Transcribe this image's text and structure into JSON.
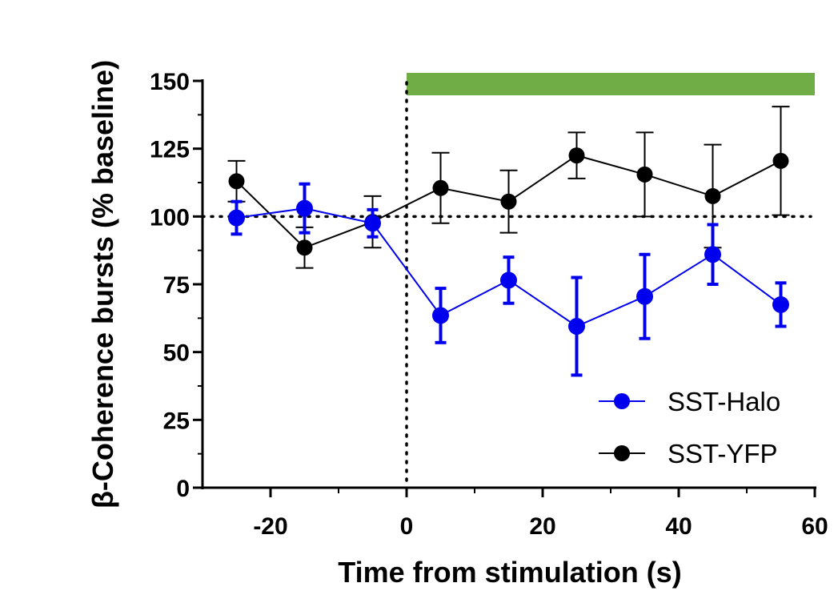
{
  "chart_data": {
    "type": "line",
    "title": "",
    "xlabel": "Time from stimulation (s)",
    "ylabel": "β-Coherence bursts (% baseline)",
    "xlim": [
      -30,
      60
    ],
    "ylim": [
      0,
      150
    ],
    "xticks": [
      -20,
      0,
      20,
      40,
      60
    ],
    "xtick_labels": [
      "-20",
      "0",
      "20",
      "40",
      "60"
    ],
    "yticks": [
      0,
      25,
      50,
      75,
      100,
      125,
      150
    ],
    "ytick_labels": [
      "0",
      "25",
      "50",
      "75",
      "100",
      "125",
      "150"
    ],
    "baseline": 100,
    "stimulation_onset": 0,
    "stimulation_period": [
      0,
      60
    ],
    "stimulation_color": "#70ad47",
    "grid": false,
    "legend_position": "bottom-right",
    "series": [
      {
        "name": "SST-Halo",
        "color": "#0000ee",
        "x": [
          -25,
          -15,
          -5,
          5,
          15,
          25,
          35,
          45,
          55
        ],
        "y": [
          99.5,
          103,
          97.5,
          63.5,
          76.5,
          59.5,
          70.5,
          86,
          67.5
        ],
        "err": [
          6,
          9,
          5,
          10,
          8.5,
          18,
          15.5,
          11,
          8
        ]
      },
      {
        "name": "SST-YFP",
        "color": "#000000",
        "x": [
          -25,
          -15,
          -5,
          5,
          15,
          25,
          35,
          45,
          55
        ],
        "y": [
          113,
          88.5,
          98,
          110.5,
          105.5,
          122.5,
          115.5,
          107.5,
          120.5
        ],
        "err": [
          7.5,
          7.5,
          9.5,
          13,
          11.5,
          8.5,
          15.5,
          19,
          20
        ]
      }
    ]
  }
}
